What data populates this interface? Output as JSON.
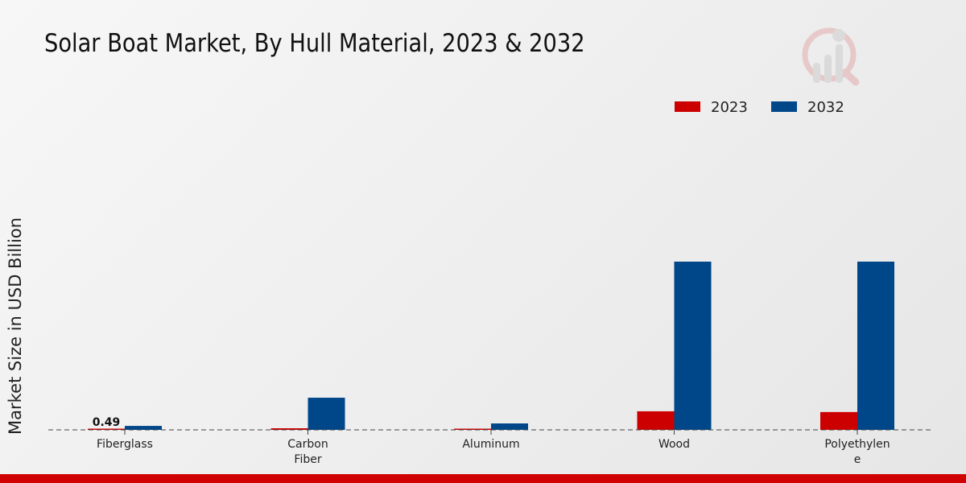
{
  "chart_data": {
    "type": "bar",
    "title": "Solar Boat Market, By Hull Material, 2023 & 2032",
    "xlabel": "",
    "ylabel": "Market Size in USD Billion",
    "categories": [
      "Fiberglass",
      "Carbon\nFiber",
      "Aluminum",
      "Wood",
      "Polyethylen\ne"
    ],
    "series": [
      {
        "name": "2023",
        "color": "#cc0000",
        "values": [
          0.49,
          0.65,
          0.33,
          7.5,
          7.2
        ]
      },
      {
        "name": "2032",
        "color": "#00478a",
        "values": [
          1.6,
          13,
          2.6,
          68,
          68
        ]
      }
    ],
    "data_labels": [
      {
        "series": "2023",
        "category": "Fiberglass",
        "text": "0.49"
      }
    ],
    "ylim": [
      0,
      75
    ],
    "legend": "top-right",
    "grid": false
  }
}
